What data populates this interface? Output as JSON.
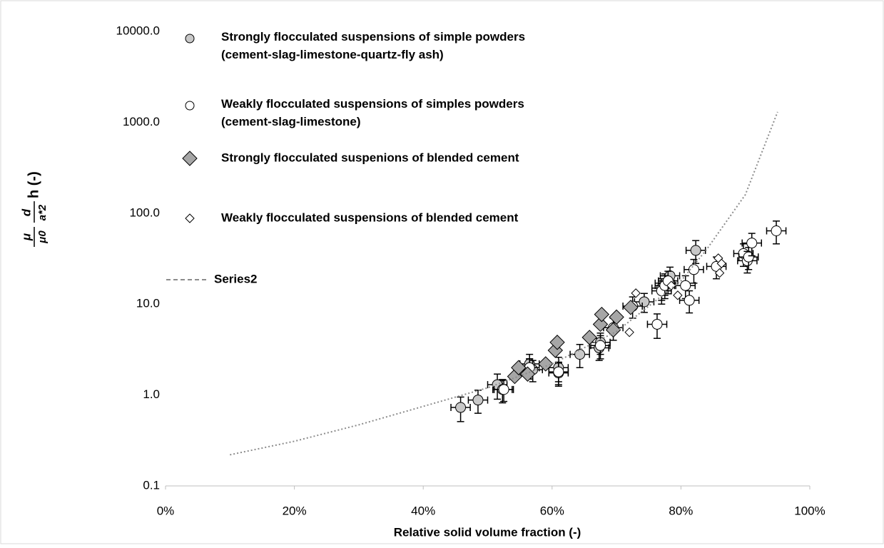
{
  "chart_data": {
    "type": "scatter",
    "x_label": "Relative solid volume fraction (-)",
    "y_label_parts": [
      "μ",
      "μ0",
      "d",
      "a*2",
      "h (-)"
    ],
    "xlim": [
      0,
      100
    ],
    "xticks": [
      {
        "value": 0,
        "label": "0%"
      },
      {
        "value": 20,
        "label": "20%"
      },
      {
        "value": 40,
        "label": "40%"
      },
      {
        "value": 60,
        "label": "60%"
      },
      {
        "value": 80,
        "label": "80%"
      },
      {
        "value": 100,
        "label": "100%"
      }
    ],
    "ylim": [
      0.1,
      10000
    ],
    "log_y": true,
    "yticks": [
      {
        "value": 0.1,
        "label": "0.1"
      },
      {
        "value": 1,
        "label": "1.0"
      },
      {
        "value": 10,
        "label": "10.0"
      },
      {
        "value": 100,
        "label": "100.0"
      },
      {
        "value": 1000,
        "label": "1000.0"
      },
      {
        "value": 10000,
        "label": "10000.0"
      }
    ],
    "series": [
      {
        "name": "Strongly flocculated suspensions of simple powders (cement-slag-limestone-quartz-fly ash)",
        "marker": "circle",
        "color": "#c8c8c8",
        "xerr": 1.5,
        "x": [
          45.8,
          48.5,
          51.5,
          52.3,
          56.5,
          56.5,
          57,
          61,
          61,
          64.3,
          67.3,
          67.5,
          74.3,
          77,
          77.5,
          78.3,
          82.3
        ],
        "values": [
          0.73,
          0.88,
          1.3,
          1.15,
          2.2,
          2.0,
          1.9,
          2.0,
          1.75,
          2.8,
          3.3,
          3.8,
          10.6,
          15,
          17,
          20.5,
          39
        ],
        "yerr": [
          0.22,
          0.25,
          0.4,
          0.33,
          0.6,
          0.5,
          0.5,
          0.6,
          0.5,
          0.8,
          0.9,
          1.0,
          2.5,
          4,
          4.5,
          5,
          11
        ]
      },
      {
        "name": "Weakly flocculated suspensions of simples powders (cement-slag-limestone)",
        "marker": "circle",
        "color": "#ffffff",
        "xerr": 1.5,
        "x": [
          52.5,
          56.5,
          61,
          67.5,
          69.5,
          72.5,
          76.3,
          77,
          77.5,
          78,
          80.7,
          81.3,
          82,
          85.5,
          89.7,
          90.3,
          90.5,
          91,
          94.8
        ],
        "values": [
          1.15,
          2.0,
          1.8,
          3.5,
          5.5,
          9.5,
          6,
          14,
          16,
          18,
          16,
          11,
          24,
          26,
          36,
          30,
          33,
          47,
          64
        ],
        "yerr": [
          0.3,
          0.5,
          0.5,
          1.0,
          1.5,
          2.5,
          1.8,
          4,
          4.5,
          5,
          4.5,
          3,
          7,
          7,
          10,
          8,
          9,
          13,
          18
        ]
      },
      {
        "name": "Strongly flocculated suspenions of blended cement",
        "marker": "diamond",
        "color": "#a6a6a6",
        "x": [
          54.2,
          54.8,
          56.2,
          59,
          60.5,
          60.8,
          65.8,
          67.5,
          67.7,
          69.5,
          70,
          72.2
        ],
        "values": [
          1.6,
          2.0,
          1.7,
          2.2,
          3.1,
          3.8,
          4.3,
          6,
          7.7,
          5.2,
          7.2,
          9.2
        ]
      },
      {
        "name": "Weakly flocculated suspensions of blended cement",
        "marker": "small-diamond",
        "color": "#ffffff",
        "x": [
          72,
          73,
          78.5,
          79.5,
          85.8,
          86,
          86.3
        ],
        "values": [
          4.9,
          13.2,
          16,
          12.5,
          32,
          22,
          28
        ]
      },
      {
        "name": "Series2",
        "marker": "line",
        "color": "#8c8c8c",
        "x": [
          10,
          20,
          30,
          40,
          50,
          60,
          70,
          80,
          84,
          90,
          95
        ],
        "values": [
          0.22,
          0.31,
          0.47,
          0.75,
          1.2,
          2.2,
          5,
          18,
          40,
          160,
          1300
        ]
      }
    ]
  }
}
